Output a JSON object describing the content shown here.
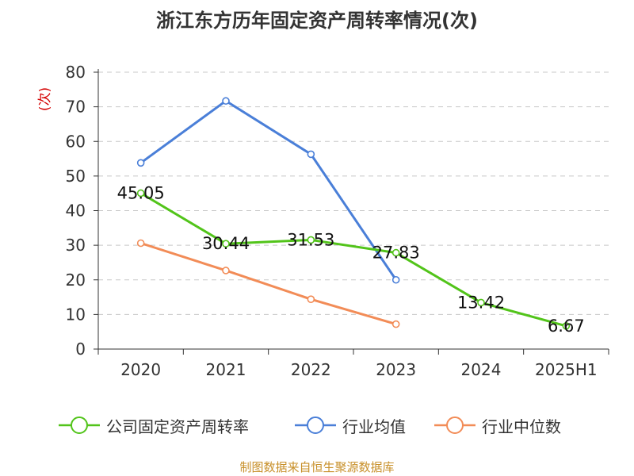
{
  "chart_data": {
    "type": "line",
    "title": "浙江东方历年固定资产周转率情况(次)",
    "ylabel": "(次)",
    "xlabel": "",
    "categories": [
      "2020",
      "2021",
      "2022",
      "2023",
      "2024",
      "2025H1"
    ],
    "ylim": [
      0,
      80
    ],
    "yticks": [
      0,
      10,
      20,
      30,
      40,
      50,
      60,
      70,
      80
    ],
    "grid": true,
    "legend_position": "bottom",
    "series": [
      {
        "name": "公司固定资产周转率",
        "color": "#52c41a",
        "values": [
          45.05,
          30.44,
          31.53,
          27.83,
          13.42,
          6.67
        ],
        "labels": [
          "45.05",
          "30.44",
          "31.53",
          "27.83",
          "13.42",
          "6.67"
        ]
      },
      {
        "name": "行业均值",
        "color": "#4a7fd8",
        "values": [
          53.8,
          71.7,
          56.3,
          20.0,
          null,
          null
        ]
      },
      {
        "name": "行业中位数",
        "color": "#f28c57",
        "values": [
          30.6,
          22.7,
          14.4,
          7.2,
          null,
          null
        ]
      }
    ]
  },
  "source_text": "制图数据来自恒生聚源数据库"
}
